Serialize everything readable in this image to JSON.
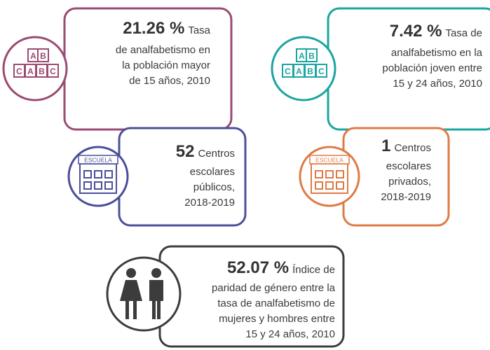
{
  "cards": [
    {
      "value": "21.26 %",
      "lines": [
        "Tasa",
        "de analfabetismo en",
        "la población mayor",
        "de 15 años, 2010"
      ],
      "icon_text": [
        "A",
        "B",
        "C",
        "A",
        "B",
        "C"
      ]
    },
    {
      "value": "7.42 %",
      "lines": [
        "Tasa de",
        "analfabetismo en la",
        "población joven entre",
        "15 y 24 años, 2010"
      ],
      "icon_text": [
        "A",
        "B",
        "C",
        "A",
        "B",
        "C"
      ]
    },
    {
      "value": "52",
      "lines": [
        "Centros",
        "escolares",
        "públicos,",
        "2018-2019"
      ],
      "icon_text": [
        "ESCUELA"
      ]
    },
    {
      "value": "1",
      "lines": [
        "Centros",
        "escolares",
        "privados,",
        "2018-2019"
      ],
      "icon_text": [
        "ESCUELA"
      ]
    },
    {
      "value": "52.07 %",
      "lines": [
        "Índice de",
        "paridad de género entre la",
        "tasa de analfabetismo de",
        "mujeres y hombres entre",
        "15 y 24 años, 2010"
      ]
    }
  ]
}
